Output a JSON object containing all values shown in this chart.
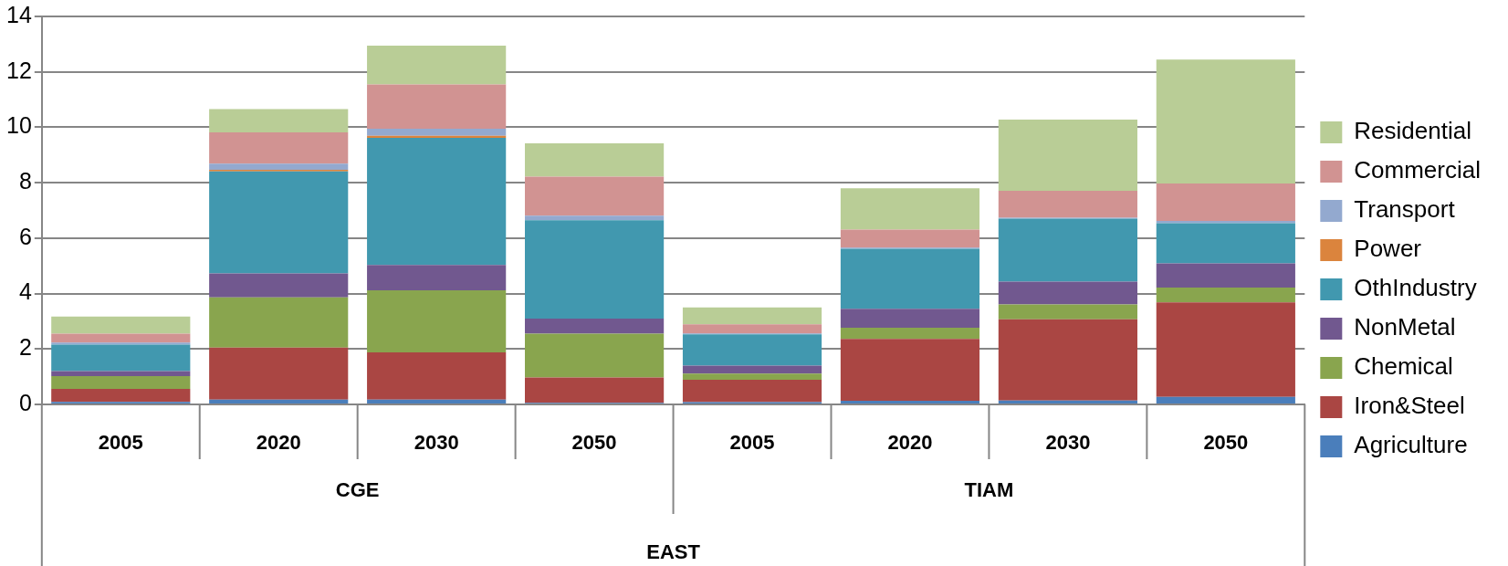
{
  "chart_data": {
    "type": "bar",
    "stacked": true,
    "categories": [
      "2005",
      "2020",
      "2030",
      "2050",
      "2005",
      "2020",
      "2030",
      "2050"
    ],
    "annotations": [
      "CGE",
      "TIAM"
    ],
    "xlabel": "EAST",
    "series": [
      {
        "name": "Agriculture",
        "color": "#4a7ebb",
        "values": [
          0.09,
          0.17,
          0.17,
          0.06,
          0.08,
          0.13,
          0.14,
          0.27
        ]
      },
      {
        "name": "Iron&Steel",
        "color": "#aa4643",
        "values": [
          0.47,
          1.88,
          1.71,
          0.91,
          0.81,
          2.23,
          2.93,
          3.41
        ]
      },
      {
        "name": "Chemical",
        "color": "#89a54e",
        "values": [
          0.46,
          1.81,
          2.24,
          1.58,
          0.22,
          0.41,
          0.54,
          0.54
        ]
      },
      {
        "name": "NonMetal",
        "color": "#71588f",
        "values": [
          0.18,
          0.87,
          0.91,
          0.55,
          0.29,
          0.68,
          0.82,
          0.87
        ]
      },
      {
        "name": "OthIndustry",
        "color": "#4198af",
        "values": [
          0.96,
          3.68,
          4.59,
          3.55,
          1.13,
          2.17,
          2.27,
          1.45
        ]
      },
      {
        "name": "Power",
        "color": "#db843d",
        "values": [
          0,
          0.06,
          0.07,
          null,
          0,
          0,
          0,
          0
        ]
      },
      {
        "name": "Transport",
        "color": "#93a9cf",
        "values": [
          0.07,
          0.22,
          0.26,
          0.16,
          0.03,
          0.04,
          0.04,
          0.08
        ]
      },
      {
        "name": "Commercial",
        "color": "#d19392",
        "values": [
          0.32,
          1.13,
          1.6,
          1.41,
          0.33,
          0.65,
          0.97,
          1.35
        ]
      },
      {
        "name": "Residential",
        "color": "#b9cd96",
        "values": [
          0.62,
          0.84,
          1.4,
          1.2,
          0.61,
          1.49,
          2.57,
          4.47
        ]
      }
    ],
    "ylim": [
      0,
      14
    ],
    "yticks": [
      0,
      2,
      4,
      6,
      8,
      10,
      12,
      14
    ],
    "grid": "y",
    "legend": "right"
  }
}
